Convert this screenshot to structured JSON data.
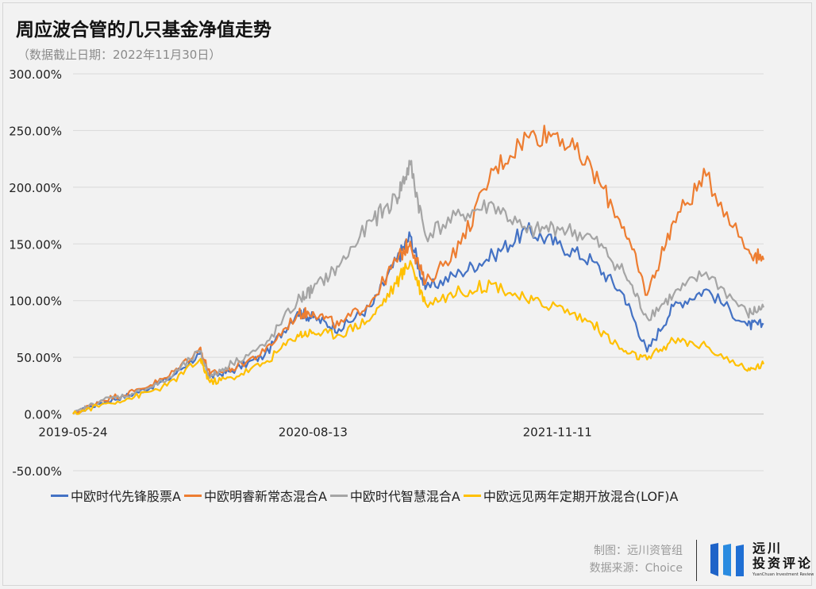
{
  "title": "周应波合管的几只基金净值走势",
  "subtitle": "（数据截止日期：2022年11月30日）",
  "footer": {
    "credit": "制图：远川资管组",
    "source": "数据来源：Choice"
  },
  "logo": {
    "cn_line1": "远川",
    "cn_line2": "投资评论",
    "en": "YuanChuan Investment Review"
  },
  "chart_data": {
    "type": "line",
    "x_tick_labels": [
      "2019-05-24",
      "2020-08-13",
      "2021-11-11"
    ],
    "y_tick_labels": [
      "300.00%",
      "250.00%",
      "200.00%",
      "150.00%",
      "100.00%",
      "50.00%",
      "0.00%",
      "-50.00%"
    ],
    "ylim": [
      -50,
      300
    ],
    "xlim": [
      "2019-05-24",
      "2022-11-30"
    ],
    "grid": true,
    "legend_position": "bottom",
    "series": [
      {
        "name": "中欧时代先锋股票A",
        "color": "#4472c4",
        "x": [
          "2019-05-24",
          "2019-07-15",
          "2019-09-15",
          "2019-11-15",
          "2020-01-15",
          "2020-02-03",
          "2020-03-15",
          "2020-05-15",
          "2020-07-15",
          "2020-08-13",
          "2020-09-30",
          "2020-11-30",
          "2021-01-15",
          "2021-02-10",
          "2021-03-10",
          "2021-05-15",
          "2021-07-15",
          "2021-09-15",
          "2021-11-11",
          "2022-01-15",
          "2022-03-15",
          "2022-04-27",
          "2022-06-15",
          "2022-08-15",
          "2022-10-31",
          "2022-11-30"
        ],
        "y": [
          0,
          10,
          18,
          30,
          53,
          33,
          38,
          52,
          90,
          85,
          75,
          95,
          135,
          157,
          110,
          125,
          140,
          162,
          150,
          135,
          105,
          55,
          95,
          110,
          78,
          79
        ]
      },
      {
        "name": "中欧明睿新常态混合A",
        "color": "#ed7d31",
        "x": [
          "2019-05-24",
          "2019-07-15",
          "2019-09-15",
          "2019-11-15",
          "2020-01-15",
          "2020-02-03",
          "2020-03-15",
          "2020-05-15",
          "2020-07-15",
          "2020-08-13",
          "2020-09-30",
          "2020-11-30",
          "2021-01-15",
          "2021-02-10",
          "2021-03-10",
          "2021-05-15",
          "2021-07-15",
          "2021-09-15",
          "2021-11-11",
          "2022-01-15",
          "2022-03-15",
          "2022-04-27",
          "2022-06-15",
          "2022-08-15",
          "2022-10-31",
          "2022-11-30"
        ],
        "y": [
          0,
          12,
          20,
          32,
          58,
          35,
          40,
          55,
          88,
          90,
          78,
          100,
          135,
          152,
          115,
          150,
          215,
          245,
          248,
          215,
          165,
          105,
          170,
          210,
          145,
          136
        ]
      },
      {
        "name": "中欧时代智慧混合A",
        "color": "#a5a5a5",
        "x": [
          "2019-05-24",
          "2019-07-15",
          "2019-09-15",
          "2019-11-15",
          "2020-01-15",
          "2020-02-03",
          "2020-03-15",
          "2020-05-15",
          "2020-07-15",
          "2020-08-13",
          "2020-09-30",
          "2020-11-30",
          "2021-01-15",
          "2021-02-10",
          "2021-03-10",
          "2021-05-15",
          "2021-07-15",
          "2021-09-15",
          "2021-11-11",
          "2022-01-15",
          "2022-03-15",
          "2022-04-27",
          "2022-06-15",
          "2022-08-15",
          "2022-10-31",
          "2022-11-30"
        ],
        "y": [
          0,
          12,
          18,
          30,
          55,
          32,
          45,
          60,
          100,
          110,
          130,
          170,
          190,
          220,
          158,
          175,
          185,
          160,
          165,
          155,
          125,
          85,
          105,
          125,
          88,
          94
        ]
      },
      {
        "name": "中欧远见两年定期开放混合(LOF)A",
        "color": "#ffc000",
        "x": [
          "2019-05-24",
          "2019-07-15",
          "2019-09-15",
          "2019-11-15",
          "2020-01-15",
          "2020-02-03",
          "2020-03-15",
          "2020-05-15",
          "2020-07-15",
          "2020-08-13",
          "2020-09-30",
          "2020-11-30",
          "2021-01-15",
          "2021-02-10",
          "2021-03-10",
          "2021-05-15",
          "2021-07-15",
          "2021-09-15",
          "2021-11-11",
          "2022-01-15",
          "2022-03-15",
          "2022-04-27",
          "2022-06-15",
          "2022-08-15",
          "2022-10-31",
          "2022-11-30"
        ],
        "y": [
          0,
          8,
          15,
          25,
          48,
          28,
          32,
          45,
          70,
          72,
          70,
          85,
          115,
          135,
          98,
          108,
          115,
          100,
          95,
          80,
          55,
          48,
          65,
          60,
          38,
          44
        ]
      }
    ]
  }
}
